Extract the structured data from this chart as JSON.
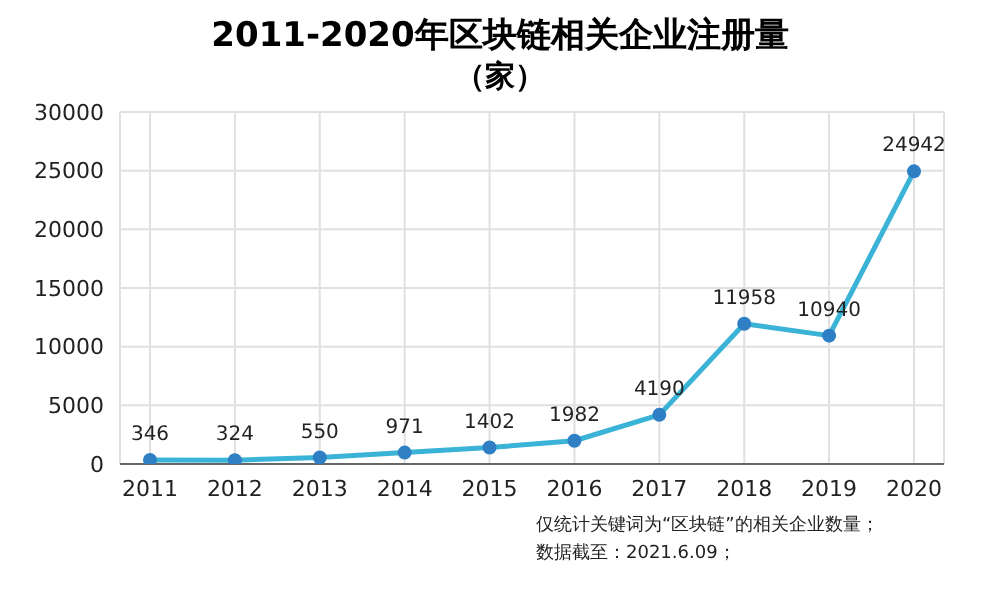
{
  "chart_data": {
    "type": "line",
    "title": "2011-2020年区块链相关企业注册量",
    "subtitle": "（家）",
    "categories": [
      "2011",
      "2012",
      "2013",
      "2014",
      "2015",
      "2016",
      "2017",
      "2018",
      "2019",
      "2020"
    ],
    "series": [
      {
        "color": "#3bb3d6",
        "values": [
          346,
          324,
          550,
          971,
          1402,
          1982,
          4190,
          11958,
          10940,
          24942
        ]
      }
    ],
    "ylim": [
      0,
      30000
    ],
    "yticks": [
      0,
      5000,
      10000,
      15000,
      20000,
      25000,
      30000
    ],
    "grid": true,
    "data_labels": true,
    "marker": "circle",
    "line_style": "solid",
    "annotations": [
      "仅统计关键词为“区块链”的相关企业数量；",
      "数据截至：2021.6.09；"
    ]
  }
}
